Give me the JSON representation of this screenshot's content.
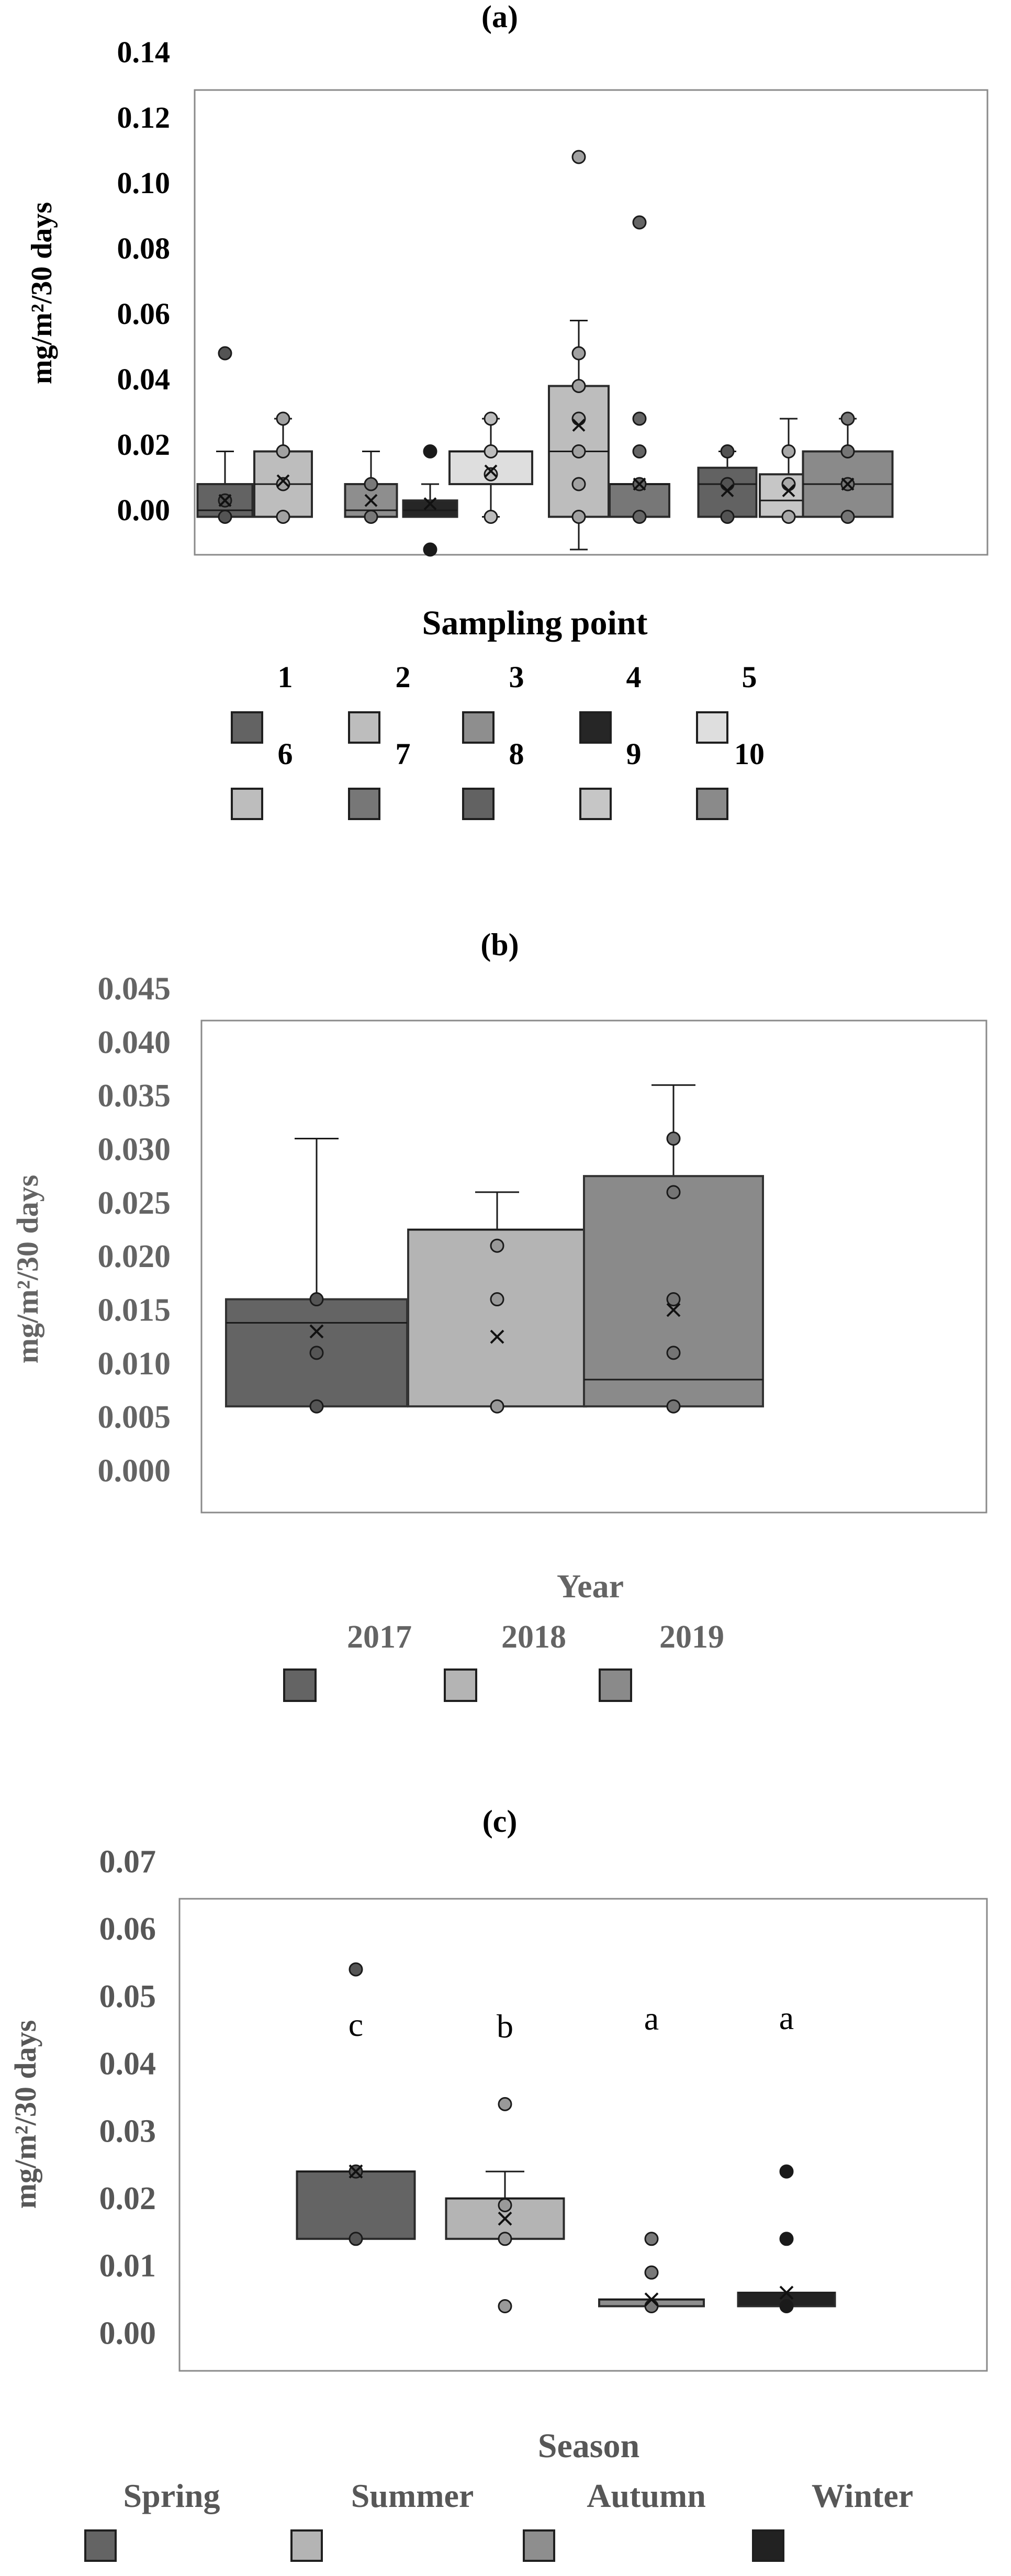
{
  "chart_data": [
    {
      "panel": "(a)",
      "type": "box",
      "title": "(a)",
      "ylabel": "mg/m²/30 days",
      "yticks": [
        "0.00",
        "0.02",
        "0.04",
        "0.06",
        "0.08",
        "0.10",
        "0.12",
        "0.14"
      ],
      "ylim": [
        -0.014,
        0.14
      ],
      "legend_title": "Sampling point",
      "legend": [
        "1",
        "2",
        "3",
        "4",
        "5",
        "6",
        "7",
        "8",
        "9",
        "10"
      ],
      "colors": [
        "#636363",
        "#bdbdbd",
        "#8e8e8e",
        "#262626",
        "#dedede",
        "#bdbdbd",
        "#777777",
        "#626262",
        "#c6c6c6",
        "#8a8a8a"
      ],
      "series": [
        {
          "name": "1",
          "q1": -0.002,
          "median": 0.0,
          "q3": 0.008,
          "whisker_low": -0.002,
          "whisker_high": 0.018,
          "mean": 0.003,
          "points": [
            0.048,
            0.003,
            -0.002
          ]
        },
        {
          "name": "2",
          "q1": -0.002,
          "median": 0.008,
          "q3": 0.018,
          "whisker_low": -0.002,
          "whisker_high": 0.028,
          "mean": 0.009,
          "points": [
            0.028,
            0.018,
            0.008,
            -0.002
          ]
        },
        {
          "name": "3",
          "q1": -0.002,
          "median": 0.0,
          "q3": 0.008,
          "whisker_low": -0.002,
          "whisker_high": 0.018,
          "mean": 0.003,
          "points": [
            0.008,
            -0.002
          ]
        },
        {
          "name": "4",
          "q1": -0.002,
          "median": 0.0,
          "q3": 0.003,
          "whisker_low": -0.002,
          "whisker_high": 0.008,
          "mean": 0.002,
          "points": [
            0.018,
            -0.012
          ]
        },
        {
          "name": "5",
          "q1": 0.008,
          "median": 0.018,
          "q3": 0.018,
          "whisker_low": -0.002,
          "whisker_high": 0.028,
          "mean": 0.012,
          "points": [
            0.028,
            0.018,
            0.011,
            -0.002
          ]
        },
        {
          "name": "6",
          "q1": -0.002,
          "median": 0.018,
          "q3": 0.038,
          "whisker_low": -0.012,
          "whisker_high": 0.058,
          "mean": 0.026,
          "points": [
            0.108,
            0.048,
            0.038,
            0.028,
            0.018,
            0.008,
            -0.002
          ]
        },
        {
          "name": "7",
          "q1": -0.002,
          "median": 0.008,
          "q3": 0.008,
          "whisker_low": -0.002,
          "whisker_high": 0.008,
          "mean": 0.008,
          "points": [
            0.088,
            0.028,
            0.018,
            0.008,
            -0.002
          ]
        },
        {
          "name": "8",
          "q1": -0.002,
          "median": 0.008,
          "q3": 0.013,
          "whisker_low": -0.002,
          "whisker_high": 0.018,
          "mean": 0.006,
          "points": [
            0.018,
            0.008,
            -0.002
          ]
        },
        {
          "name": "9",
          "q1": -0.002,
          "median": 0.003,
          "q3": 0.011,
          "whisker_low": -0.002,
          "whisker_high": 0.028,
          "mean": 0.006,
          "points": [
            0.018,
            0.008,
            -0.002
          ]
        },
        {
          "name": "10",
          "q1": -0.002,
          "median": 0.008,
          "q3": 0.018,
          "whisker_low": -0.002,
          "whisker_high": 0.028,
          "mean": 0.008,
          "points": [
            0.028,
            0.018,
            0.008,
            -0.002
          ]
        }
      ]
    },
    {
      "panel": "(b)",
      "type": "box",
      "title": "(b)",
      "ylabel": "mg/m²/30 days",
      "yticks": [
        "0.000",
        "0.005",
        "0.010",
        "0.015",
        "0.020",
        "0.025",
        "0.030",
        "0.035",
        "0.040",
        "0.045"
      ],
      "ylim": [
        -0.002,
        0.045
      ],
      "legend_title": "Year",
      "legend": [
        "2017",
        "2018",
        "2019"
      ],
      "colors": [
        "#646464",
        "#b4b4b4",
        "#8a8a8a"
      ],
      "series": [
        {
          "name": "2017",
          "q1": 0.006,
          "median": 0.0138,
          "q3": 0.016,
          "whisker_low": 0.006,
          "whisker_high": 0.031,
          "mean": 0.013,
          "points": [
            0.016,
            0.011,
            0.006
          ]
        },
        {
          "name": "2018",
          "q1": 0.006,
          "median": 0.0225,
          "q3": 0.0225,
          "whisker_low": 0.006,
          "whisker_high": 0.026,
          "mean": 0.0125,
          "points": [
            0.021,
            0.016,
            0.006
          ]
        },
        {
          "name": "2019",
          "q1": 0.006,
          "median": 0.0085,
          "q3": 0.0275,
          "whisker_low": 0.006,
          "whisker_high": 0.036,
          "mean": 0.015,
          "points": [
            0.031,
            0.026,
            0.016,
            0.011,
            0.006
          ]
        }
      ]
    },
    {
      "panel": "(c)",
      "type": "box",
      "title": "(c)",
      "ylabel": "mg/m²/30 days",
      "yticks": [
        "0.00",
        "0.01",
        "0.02",
        "0.03",
        "0.04",
        "0.05",
        "0.06",
        "0.07"
      ],
      "ylim": [
        -0.005,
        0.07
      ],
      "legend_title": "Season",
      "legend": [
        "Spring",
        "Summer",
        "Autumn",
        "Winter"
      ],
      "colors": [
        "#646464",
        "#b4b4b4",
        "#8e8e8e",
        "#222222"
      ],
      "letters": [
        "c",
        "b",
        "a",
        "a"
      ],
      "series": [
        {
          "name": "Spring",
          "q1": 0.014,
          "median": 0.024,
          "q3": 0.024,
          "whisker_low": 0.014,
          "whisker_high": 0.024,
          "mean": 0.024,
          "points": [
            0.054,
            0.024,
            0.014
          ]
        },
        {
          "name": "Summer",
          "q1": 0.014,
          "median": 0.02,
          "q3": 0.02,
          "whisker_low": 0.014,
          "whisker_high": 0.024,
          "mean": 0.017,
          "points": [
            0.034,
            0.019,
            0.014,
            0.004
          ]
        },
        {
          "name": "Autumn",
          "q1": 0.004,
          "median": 0.005,
          "q3": 0.005,
          "whisker_low": 0.004,
          "whisker_high": 0.005,
          "mean": 0.005,
          "points": [
            0.014,
            0.009,
            0.004
          ]
        },
        {
          "name": "Winter",
          "q1": 0.004,
          "median": 0.006,
          "q3": 0.006,
          "whisker_low": 0.004,
          "whisker_high": 0.006,
          "mean": 0.006,
          "points": [
            0.024,
            0.014,
            0.004
          ]
        }
      ]
    }
  ]
}
